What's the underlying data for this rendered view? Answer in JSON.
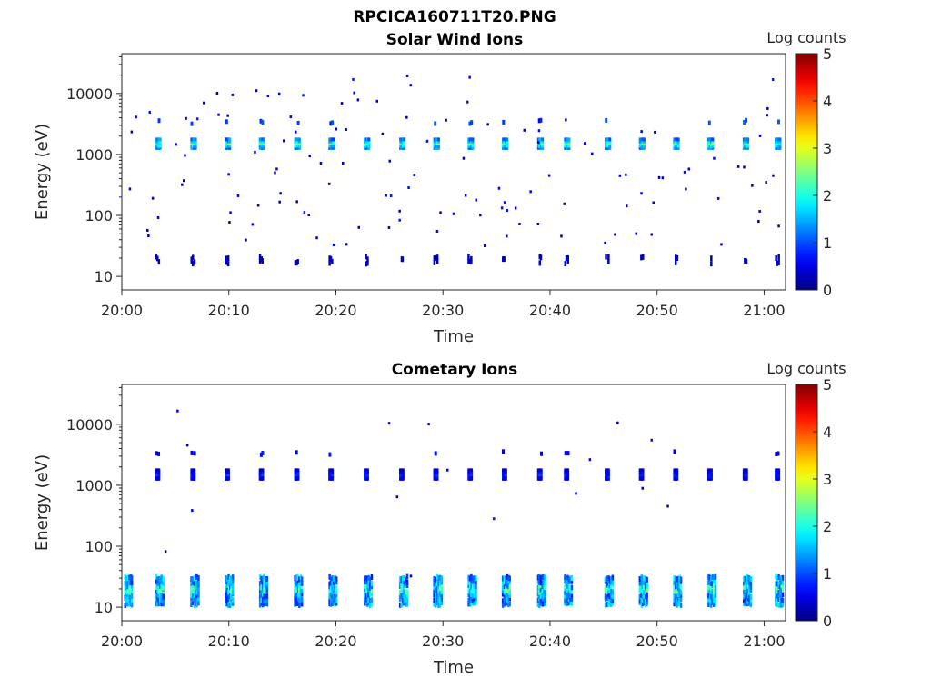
{
  "figure": {
    "title": "RPCICA160711T20.PNG"
  },
  "chart_data": [
    {
      "type": "heatmap",
      "title": "Solar Wind Ions",
      "xlabel": "Time",
      "ylabel": "Energy (eV)",
      "x_ticks": [
        "20:00",
        "20:10",
        "20:20",
        "20:30",
        "20:40",
        "20:50",
        "21:00"
      ],
      "y_ticks": [
        "10",
        "100",
        "1000",
        "10000"
      ],
      "y_scale": "log",
      "ylim": [
        6,
        45000
      ],
      "xlim": [
        "20:00",
        "21:02"
      ],
      "colorbar": {
        "label": "Log counts",
        "ticks": [
          "0",
          "1",
          "2",
          "3",
          "4",
          "5"
        ],
        "range": [
          0,
          5
        ],
        "colormap": "jet"
      },
      "cycle_start_minutes": [
        3.1,
        6.4,
        9.6,
        12.8,
        16.1,
        19.3,
        22.6,
        25.9,
        29.1,
        32.3,
        35.5,
        38.8,
        41.3,
        45.1,
        48.3,
        51.5,
        54.7,
        58.0,
        61.0
      ],
      "bands": [
        {
          "energy": 1500,
          "log_counts": 2.2
        },
        {
          "energy": 3400,
          "log_counts": 0.9
        },
        {
          "energy": 20,
          "log_counts": 0.4
        }
      ]
    },
    {
      "type": "heatmap",
      "title": "Cometary Ions",
      "xlabel": "Time",
      "ylabel": "Energy (eV)",
      "x_ticks": [
        "20:00",
        "20:10",
        "20:20",
        "20:30",
        "20:40",
        "20:50",
        "21:00"
      ],
      "y_ticks": [
        "10",
        "100",
        "1000",
        "10000"
      ],
      "y_scale": "log",
      "ylim": [
        6,
        45000
      ],
      "xlim": [
        "20:00",
        "21:02"
      ],
      "colorbar": {
        "label": "Log counts",
        "ticks": [
          "0",
          "1",
          "2",
          "3",
          "4",
          "5"
        ],
        "range": [
          0,
          5
        ],
        "colormap": "jet"
      },
      "cycle_start_minutes": [
        0.2,
        3.1,
        6.4,
        9.6,
        12.8,
        16.1,
        19.3,
        22.6,
        25.9,
        29.1,
        32.3,
        35.5,
        38.8,
        41.3,
        45.1,
        48.3,
        51.5,
        54.7,
        58.0,
        61.0
      ],
      "bands": [
        {
          "energy": 1500,
          "log_counts": 0.8
        },
        {
          "energy": 3400,
          "log_counts": 0.6
        },
        {
          "energy": 20,
          "log_counts": 1.8
        }
      ]
    }
  ]
}
